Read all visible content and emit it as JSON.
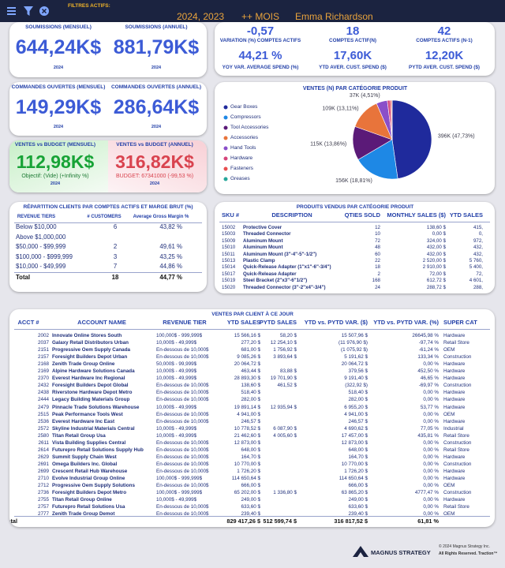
{
  "header": {
    "label": "FILTRES ACTIFS:",
    "years": "2024, 2023",
    "period": "++ MOIS",
    "user": "Emma Richardson"
  },
  "soumissions": [
    {
      "title": "SOUMISSIONS (MENSUEL)",
      "value": "644,24K$",
      "year": "2024"
    },
    {
      "title": "SOUMISSIONS (ANNUEL)",
      "value": "881,79K$",
      "year": "2024"
    }
  ],
  "comptes": [
    {
      "value": "-0,57",
      "label": "VARIATION (%) COMPTES ACTIFS"
    },
    {
      "value": "18",
      "label": "COMPTES ACTIF(N)"
    },
    {
      "value": "42",
      "label": "COMPTES ACTIFS (N-1)"
    },
    {
      "value": "44,21 %",
      "label": "YOY VAR. AVERAGE SPEND (%)"
    },
    {
      "value": "17,60K",
      "label": "YTD AVER. CUST. SPEND ($)"
    },
    {
      "value": "12,20K",
      "label": "PYTD AVER. CUST. SPEND ($)"
    }
  ],
  "commandes": [
    {
      "title": "COMMANDES OUVERTES (MENSUEL)",
      "value": "149,29K$",
      "year": "2024"
    },
    {
      "title": "COMMANDES OUVERTES (ANNUEL)",
      "value": "286,64K$",
      "year": "2024"
    }
  ],
  "budget": [
    {
      "title": "VENTES vs BUDGET (MENSUEL)",
      "value": "112,98K$",
      "note": "Objectif: (Vide) (+Infinity %)",
      "year": "2024"
    },
    {
      "title": "VENTES vs BUDGET (ANNUEL)",
      "value": "316,82K$",
      "note": "BUDGET: 67341000 (-99,53 %)",
      "year": "2024"
    }
  ],
  "chart_data": {
    "type": "pie",
    "title": "VENTES (N) PAR CATÉGORIE PRODUIT",
    "categories": [
      "Gear Boxes",
      "Compressors",
      "Tool Accessories",
      "Accessories",
      "Hand Tools",
      "Hardware",
      "Fasteners",
      "Greases"
    ],
    "values": [
      47.73,
      18.81,
      13.86,
      13.11,
      4.51,
      1.2,
      0.6,
      0.18
    ],
    "value_labels": [
      "396K (47,73%)",
      "156K (18,81%)",
      "115K (13,86%)",
      "109K (13,11%)",
      "37K (4,51%)",
      null,
      null,
      null
    ],
    "colors": [
      "#1f2a9c",
      "#1e88e5",
      "#5b1a78",
      "#e8743b",
      "#8a4fc9",
      "#d6457a",
      "#e84f4f",
      "#26a69a"
    ]
  },
  "repartition": {
    "title": "RÉPARTITION CLIENTS PAR COMPTES ACTIFS ET MARGE BRUT (%)",
    "columns": [
      "REVENUE TIERS",
      "# CUSTOMERS",
      "Average Gross Margin %"
    ],
    "rows": [
      [
        "Below $10,000",
        "6",
        "43,82 %"
      ],
      [
        "Above $1,000,000",
        null,
        null
      ],
      [
        "$50,000 - $99,999",
        "2",
        "49,61 %"
      ],
      [
        "$100,000 - $999,999",
        "3",
        "43,25 %"
      ],
      [
        "$10,000 - $49,999",
        "7",
        "44,86 %"
      ]
    ],
    "total": [
      "Total",
      "18",
      "44,77 %"
    ]
  },
  "produits": {
    "title": "PRODUITS VENDUS PAR CATÉGORIE PRODUIT",
    "columns": [
      "SKU #",
      "DESCRIPTION",
      "QTIES SOLD",
      "MONTHLY SALES ($)",
      "YTD SALES"
    ],
    "rows": [
      [
        "15002",
        "Protective Cover",
        "12",
        "138,60 $",
        "415,"
      ],
      [
        "15003",
        "Threaded Connector",
        "10",
        "0,00 $",
        "0,"
      ],
      [
        "15009",
        "Aluminum Mount",
        "72",
        "324,00 $",
        "972,"
      ],
      [
        "15010",
        "Aluminum Mount",
        "48",
        "432,00 $",
        "432,"
      ],
      [
        "15011",
        "Aluminum Mount (3\"-4\"-5\"-1/2\")",
        "60",
        "432,00 $",
        "432,"
      ],
      [
        "15013",
        "Plastic Clamp",
        "22",
        "2 520,00 $",
        "5 760,"
      ],
      [
        "15014",
        "Quick-Release Adapter (1\"x1\"-6\"-3/4\")",
        "18",
        "2 910,00 $",
        "5 400,"
      ],
      [
        "15017",
        "Quick-Release Adapter",
        "2",
        "72,00 $",
        "72,"
      ],
      [
        "15019",
        "Steel Bracket (2\"x3\"-6\"1/2\")",
        "168",
        "612,72 $",
        "4 601,"
      ],
      [
        "15020",
        "Threaded Connector (3\"-2\"x4\"-3/4\")",
        "24",
        "288,72 $",
        "288,"
      ]
    ]
  },
  "ventes": {
    "title": "VENTES PAR CLIENT À CE JOUR",
    "columns": [
      "ACCT #",
      "ACCOUNT NAME",
      "REVENUE TIER",
      "YTD SALES",
      "PYTD SALES",
      "YTD vs. PYTD VAR. ($)",
      "YTD vs. PYTD VAR. (%)",
      "SUPER CAT"
    ],
    "rows": [
      [
        "2002",
        "Innovate Online Stores South",
        "100,000$ - 999,999$",
        "15 566,16 $",
        "58,20 $",
        "15 507,96 $",
        "26645,98 %",
        "Hardware"
      ],
      [
        "2037",
        "Galaxy Retail Distributors Urban",
        "10,000$ - 49,999$",
        "277,20 $",
        "12 254,10 $",
        "(11 976,90 $)",
        "-97,74 %",
        "Retail Store"
      ],
      [
        "2151",
        "Progressive Oem Supply Canada",
        "En-dessous de 10,000$",
        "681,00 $",
        "1 756,92 $",
        "(1 075,92 $)",
        "-61,24 %",
        "OEM"
      ],
      [
        "2157",
        "Foresight Builders Depot Urban",
        "En-dessous de 10,000$",
        "9 085,26 $",
        "3 893,64 $",
        "5 191,62 $",
        "133,34 %",
        "Construction"
      ],
      [
        "2168",
        "Zenith Trade Group Online",
        "50,000$ - 99,999$",
        "20 064,72 $",
        null,
        "20 064,72 $",
        "0,00 %",
        "Hardware"
      ],
      [
        "2169",
        "Alpine Hardware Solutions Canada",
        "10,000$ - 49,999$",
        "463,44 $",
        "83,88 $",
        "379,56 $",
        "452,50 %",
        "Hardware"
      ],
      [
        "2370",
        "Everest Hardware Inc Regional",
        "10,000$ - 49,999$",
        "28 893,30 $",
        "19 701,90 $",
        "9 191,40 $",
        "46,65 %",
        "Hardware"
      ],
      [
        "2432",
        "Foresight Builders Depot Global",
        "En-dessous de 10,000$",
        "138,60 $",
        "461,52 $",
        "(322,92 $)",
        "-69,97 %",
        "Construction"
      ],
      [
        "2438",
        "Riverstone Hardware Depot Metro",
        "En-dessous de 10,000$",
        "518,40 $",
        null,
        "518,40 $",
        "0,00 %",
        "Hardware"
      ],
      [
        "2444",
        "Legacy Building Materials Group",
        "En-dessous de 10,000$",
        "282,00 $",
        null,
        "282,00 $",
        "0,00 %",
        "Hardware"
      ],
      [
        "2479",
        "Pinnacle Trade Solutions Warehouse",
        "10,000$ - 49,999$",
        "19 891,14 $",
        "12 935,94 $",
        "6 955,20 $",
        "53,77 %",
        "Hardware"
      ],
      [
        "2515",
        "Peak Performance Tools West",
        "En-dessous de 10,000$",
        "4 941,00 $",
        null,
        "4 941,00 $",
        "0,00 %",
        "OEM"
      ],
      [
        "2536",
        "Everest Hardware Inc East",
        "En-dessous de 10,000$",
        "246,57 $",
        null,
        "246,57 $",
        "0,00 %",
        "Hardware"
      ],
      [
        "2572",
        "Skyline Industrial Materials Central",
        "10,000$ - 49,999$",
        "10 778,52 $",
        "6 087,90 $",
        "4 690,62 $",
        "77,05 %",
        "Industrial"
      ],
      [
        "2580",
        "Titan Retail Group Usa",
        "10,000$ - 49,999$",
        "21 462,60 $",
        "4 005,60 $",
        "17 457,00 $",
        "435,81 %",
        "Retail Store"
      ],
      [
        "2611",
        "Vista Building Supplies Central",
        "En-dessous de 10,000$",
        "12 873,00 $",
        null,
        "12 873,00 $",
        "0,00 %",
        "Construction"
      ],
      [
        "2614",
        "Futurepro Retail Solutions Supply Hub",
        "En-dessous de 10,000$",
        "648,00 $",
        null,
        "648,00 $",
        "0,00 %",
        "Retail Store"
      ],
      [
        "2629",
        "Summit Supply Chain West",
        "En-dessous de 10,000$",
        "164,70 $",
        null,
        "164,70 $",
        "0,00 %",
        "Hardware"
      ],
      [
        "2691",
        "Omega Builders Inc. Global",
        "En-dessous de 10,000$",
        "10 770,00 $",
        null,
        "10 770,00 $",
        "0,00 %",
        "Construction"
      ],
      [
        "2699",
        "Crescent Retail Hub Warehouse",
        "En-dessous de 10,000$",
        "1 726,20 $",
        null,
        "1 726,20 $",
        "0,00 %",
        "Hardware"
      ],
      [
        "2710",
        "Evolve Industrial Group Online",
        "100,000$ - 999,999$",
        "114 650,64 $",
        null,
        "114 650,64 $",
        "0,00 %",
        "Hardware"
      ],
      [
        "2712",
        "Progressive Oem Supply Solutions",
        "En-dessous de 10,000$",
        "666,00 $",
        null,
        "666,00 $",
        "0,00 %",
        "OEM"
      ],
      [
        "2736",
        "Foresight Builders Depot Metro",
        "100,000$ - 999,999$",
        "65 202,00 $",
        "1 336,80 $",
        "63 865,20 $",
        "4777,47 %",
        "Construction"
      ],
      [
        "2755",
        "Titan Retail Group Online",
        "10,000$ - 49,999$",
        "249,00 $",
        null,
        "249,00 $",
        "0,00 %",
        "Hardware"
      ],
      [
        "2757",
        "Futurepro Retail Solutions Usa",
        "En-dessous de 10,000$",
        "633,60 $",
        null,
        "633,60 $",
        "0,00 %",
        "Retail Store"
      ],
      [
        "2777",
        "Zenith Trade Group Demot",
        "En-dessous de 10,000$",
        "239,40 $",
        null,
        "239,40 $",
        "0,00 %",
        "OEM"
      ]
    ],
    "total": [
      "Total",
      null,
      null,
      "829 417,26 $",
      "512 599,74 $",
      "316 817,52 $",
      "61,81 %",
      null
    ]
  },
  "footer": {
    "brand": "MAGNUS STRATEGY",
    "copyright": "© 2024 Magnus Strategy Inc.",
    "rights": "All Rights Reserved. Traction™"
  }
}
